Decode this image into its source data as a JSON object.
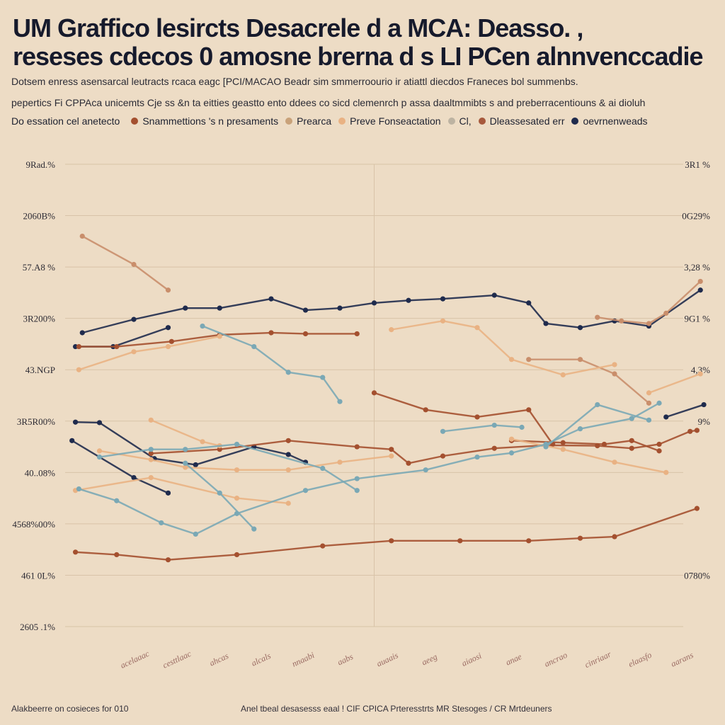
{
  "title": {
    "line1": "UM Graffico lesircts Desacrele d  a  MCA: Deasso. ,",
    "line2": "reseses cdecos  0 amosne brerna d s LI PCen alnnvenccadie"
  },
  "subtitle": {
    "line1": "Dotsem enress asensarcal  leutracts rcaca eagc [PCI/MACAO  Beadr  sim  smmerroourio ir  atiattl  diecdos  Franeces  bol  summenbs.",
    "line2": "pepertics Fi CPPAca unicemts  Cje  ss  &n ta  eitties  geastto  ento  ddees co  sicd  clemenrch  p  assa  daaltmmibts  s  and  preberracentiouns  &  ai dioluh"
  },
  "legend": {
    "label": "Do essation cel anetecto",
    "items": [
      {
        "label": "Snammettions 's n  presaments",
        "color": "#a4502f"
      },
      {
        "label": "Prearca",
        "color": "#c9a27a"
      },
      {
        "label": "Preve  Fonseactation",
        "color": "#e9b283"
      },
      {
        "label": "Cl,",
        "color": "#bdb3a2"
      },
      {
        "label": "Dleassesated  err",
        "color": "#a7593c"
      },
      {
        "label": "oevrnenweads",
        "color": "#1f2b4d"
      }
    ]
  },
  "footer": {
    "left": "Alakbeerre  on  cosieces for 010",
    "middle": "Anel tbeal desasesss eaal ! CIF CPICA  Prteresstrts MR Stesoges / CR  Mrtdeuners"
  },
  "colors": {
    "background": "#eddcc5",
    "grid": "#d8c3a8",
    "navy": "#1f2b4d",
    "rust": "#a4502f",
    "peach": "#e9b283",
    "teal": "#7aa8b5"
  },
  "chart_data": {
    "type": "line",
    "title": "",
    "xlabel": "",
    "ylabel": "",
    "ylim": [
      0,
      9
    ],
    "x": [
      0,
      1,
      2,
      3,
      4,
      5,
      6,
      7,
      8,
      9,
      10,
      11,
      12,
      13,
      14,
      15,
      16,
      17,
      18
    ],
    "left_tick_labels": [
      "9Rad.%",
      "2060B%",
      "57.A8 %",
      "3R200%",
      "43.NGP",
      "3R5R00%",
      "40..08%",
      "4568%00%",
      "461 0L%",
      "2605 .1%"
    ],
    "right_tick_labels": [
      "3R1 %",
      "0G29%",
      "3,28 %",
      "9G1 %",
      "4,3%",
      "9% ",
      "",
      "",
      "0780%",
      ""
    ],
    "x_tick_labels": [
      "acelaaac",
      "cesttlaac",
      "ahcas",
      "alcals",
      "nnaabi",
      "aabs",
      "auaais",
      "aeeg",
      "aiaosi",
      "anae",
      "ancrao",
      "cinriaar",
      "elaasfo",
      "aarans"
    ],
    "grid": true,
    "series": [
      {
        "color": "#1f2b4d",
        "points": [
          [
            0.5,
            5.72
          ],
          [
            2,
            5.98
          ],
          [
            3.5,
            6.2
          ],
          [
            4.5,
            6.2
          ],
          [
            6,
            6.38
          ],
          [
            7,
            6.16
          ],
          [
            8,
            6.2
          ],
          [
            9,
            6.3
          ],
          [
            10,
            6.35
          ],
          [
            11,
            6.38
          ],
          [
            12.5,
            6.45
          ],
          [
            13.5,
            6.3
          ],
          [
            14,
            5.9
          ],
          [
            15,
            5.82
          ],
          [
            16,
            5.95
          ],
          [
            17,
            5.85
          ],
          [
            18.5,
            6.55
          ]
        ]
      },
      {
        "color": "#1f2b4d",
        "points": [
          [
            0.3,
            3.98
          ],
          [
            1,
            3.97
          ],
          [
            2.6,
            3.27
          ],
          [
            3.8,
            3.15
          ],
          [
            5.5,
            3.5
          ],
          [
            6.5,
            3.35
          ],
          [
            7,
            3.2
          ]
        ]
      },
      {
        "color": "#1f2b4d",
        "points": [
          [
            0.2,
            3.62
          ],
          [
            2,
            2.9
          ],
          [
            3,
            2.6
          ]
        ]
      },
      {
        "color": "#1f2b4d",
        "points": [
          [
            0.3,
            5.45
          ],
          [
            1.4,
            5.45
          ],
          [
            3,
            5.82
          ]
        ]
      },
      {
        "color": "#1f2b4d",
        "points": [
          [
            17.5,
            4.08
          ],
          [
            18.6,
            4.32
          ]
        ]
      },
      {
        "color": "#a4502f",
        "points": [
          [
            0.4,
            5.45
          ],
          [
            1.5,
            5.45
          ],
          [
            3.1,
            5.55
          ],
          [
            4.5,
            5.68
          ],
          [
            6,
            5.72
          ],
          [
            7,
            5.7
          ],
          [
            8.5,
            5.7
          ]
        ]
      },
      {
        "color": "#a4502f",
        "points": [
          [
            9,
            4.55
          ],
          [
            10.5,
            4.22
          ],
          [
            12,
            4.08
          ],
          [
            13.5,
            4.22
          ],
          [
            14.2,
            3.55
          ]
        ]
      },
      {
        "color": "#a4502f",
        "points": [
          [
            2.5,
            3.37
          ],
          [
            4.5,
            3.45
          ],
          [
            6.5,
            3.62
          ],
          [
            8.5,
            3.5
          ],
          [
            9.5,
            3.45
          ],
          [
            10,
            3.18
          ],
          [
            11,
            3.32
          ],
          [
            12.5,
            3.47
          ],
          [
            14,
            3.53
          ],
          [
            15.5,
            3.52
          ],
          [
            16.5,
            3.47
          ],
          [
            17.3,
            3.55
          ],
          [
            18.2,
            3.8
          ],
          [
            18.4,
            3.82
          ]
        ]
      },
      {
        "color": "#a4502f",
        "points": [
          [
            0.3,
            1.45
          ],
          [
            1.5,
            1.4
          ],
          [
            3,
            1.3
          ],
          [
            5,
            1.4
          ],
          [
            7.5,
            1.57
          ],
          [
            9.5,
            1.67
          ],
          [
            11.5,
            1.67
          ],
          [
            13.5,
            1.67
          ],
          [
            15,
            1.72
          ],
          [
            16,
            1.75
          ],
          [
            18.4,
            2.3
          ]
        ]
      },
      {
        "color": "#a4502f",
        "points": [
          [
            13,
            3.62
          ],
          [
            14.5,
            3.58
          ],
          [
            15.7,
            3.55
          ],
          [
            16.5,
            3.62
          ],
          [
            17.3,
            3.42
          ]
        ]
      },
      {
        "color": "#c98e6b",
        "points": [
          [
            0.5,
            7.6
          ],
          [
            2,
            7.05
          ],
          [
            3,
            6.55
          ]
        ]
      },
      {
        "color": "#c98e6b",
        "points": [
          [
            13.5,
            5.2
          ],
          [
            15,
            5.2
          ],
          [
            16,
            4.92
          ],
          [
            17,
            4.35
          ]
        ]
      },
      {
        "color": "#c98e6b",
        "points": [
          [
            15.5,
            6.02
          ],
          [
            16.2,
            5.95
          ],
          [
            17,
            5.9
          ],
          [
            17.5,
            6.1
          ],
          [
            18.5,
            6.72
          ]
        ]
      },
      {
        "color": "#e9b283",
        "points": [
          [
            0.4,
            5.0
          ],
          [
            2,
            5.35
          ],
          [
            3,
            5.45
          ],
          [
            4.5,
            5.65
          ]
        ]
      },
      {
        "color": "#e9b283",
        "points": [
          [
            9.5,
            5.78
          ],
          [
            11,
            5.95
          ],
          [
            12,
            5.82
          ],
          [
            13,
            5.2
          ],
          [
            14.5,
            4.9
          ],
          [
            16,
            5.1
          ]
        ]
      },
      {
        "color": "#e9b283",
        "points": [
          [
            17,
            4.55
          ],
          [
            18.5,
            4.92
          ]
        ]
      },
      {
        "color": "#e9b283",
        "points": [
          [
            1,
            3.42
          ],
          [
            2.5,
            3.25
          ],
          [
            3.5,
            3.1
          ],
          [
            5,
            3.05
          ],
          [
            6.5,
            3.05
          ],
          [
            8,
            3.2
          ],
          [
            9.5,
            3.32
          ]
        ]
      },
      {
        "color": "#e9b283",
        "points": [
          [
            13,
            3.65
          ],
          [
            14.5,
            3.45
          ],
          [
            16,
            3.2
          ],
          [
            17.5,
            3.0
          ]
        ]
      },
      {
        "color": "#e9b283",
        "points": [
          [
            2.5,
            4.02
          ],
          [
            4,
            3.6
          ],
          [
            4.5,
            3.52
          ]
        ]
      },
      {
        "color": "#e9b283",
        "points": [
          [
            0.3,
            2.65
          ],
          [
            2.5,
            2.9
          ],
          [
            5,
            2.5
          ],
          [
            6.5,
            2.4
          ]
        ]
      },
      {
        "color": "#7aa8b5",
        "points": [
          [
            0.4,
            2.68
          ],
          [
            1.5,
            2.45
          ],
          [
            2.8,
            2.02
          ],
          [
            3.8,
            1.8
          ],
          [
            5,
            2.2
          ],
          [
            7,
            2.65
          ],
          [
            8.5,
            2.88
          ],
          [
            10.5,
            3.05
          ],
          [
            12,
            3.3
          ],
          [
            13,
            3.38
          ],
          [
            14,
            3.55
          ],
          [
            15,
            3.85
          ],
          [
            16.5,
            4.05
          ],
          [
            17.3,
            4.35
          ]
        ]
      },
      {
        "color": "#7aa8b5",
        "points": [
          [
            3.5,
            3.18
          ],
          [
            4.5,
            2.6
          ],
          [
            5.5,
            1.9
          ]
        ]
      },
      {
        "color": "#7aa8b5",
        "points": [
          [
            1,
            3.3
          ],
          [
            2.5,
            3.45
          ],
          [
            3.5,
            3.45
          ],
          [
            5,
            3.55
          ],
          [
            7.5,
            3.08
          ],
          [
            8.5,
            2.65
          ]
        ]
      },
      {
        "color": "#7aa8b5",
        "points": [
          [
            4,
            5.85
          ],
          [
            5.5,
            5.45
          ],
          [
            6.5,
            4.95
          ],
          [
            7.5,
            4.85
          ],
          [
            8,
            4.38
          ]
        ]
      },
      {
        "color": "#7aa8b5",
        "points": [
          [
            14,
            3.5
          ],
          [
            15.5,
            4.32
          ],
          [
            17,
            4.02
          ]
        ]
      },
      {
        "color": "#7aa8b5",
        "points": [
          [
            11,
            3.8
          ],
          [
            12.5,
            3.92
          ],
          [
            13.3,
            3.88
          ]
        ]
      }
    ]
  }
}
